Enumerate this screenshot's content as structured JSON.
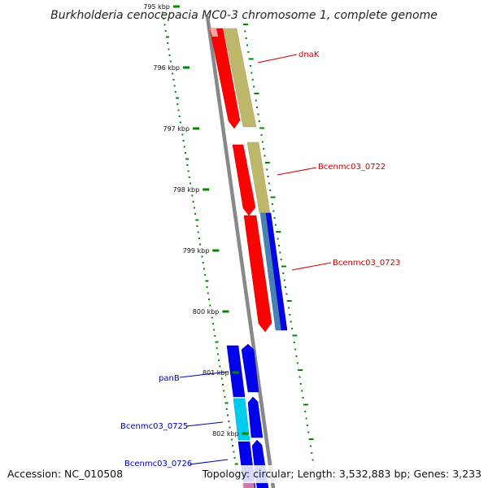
{
  "title": "Burkholderia cenocepacia MC0-3 chromosome 1, complete genome",
  "accession": "Accession: NC_010508",
  "topology": "Topology: circular; Length: 3,532,883 bp; Genes: 3,233",
  "colors": {
    "backbone": "#888888",
    "tick": "#008800",
    "red_gene": "#ff0000",
    "khaki_gene": "#bdb76b",
    "blue_gene": "#0000ee",
    "steelblue_gene": "#4682b4",
    "cyan_gene": "#00ccee",
    "label_red": "#cc0000",
    "label_blue": "#0000aa"
  },
  "axis": {
    "unit": "kbp",
    "major_ticks": [
      {
        "value": 795,
        "label": "795 kbp"
      },
      {
        "value": 796,
        "label": "796 kbp"
      },
      {
        "value": 797,
        "label": "797 kbp"
      },
      {
        "value": 798,
        "label": "798 kbp"
      },
      {
        "value": 799,
        "label": "799 kbp"
      },
      {
        "value": 800,
        "label": "800 kbp"
      },
      {
        "value": 801,
        "label": "801 kbp"
      },
      {
        "value": 802,
        "label": "802 kbp"
      }
    ]
  },
  "gene_labels": [
    {
      "id": "dnaK",
      "text": "dnaK",
      "color": "#cc0000"
    },
    {
      "id": "bcen0722",
      "text": "Bcenmc03_0722",
      "color": "#cc0000"
    },
    {
      "id": "bcen0723",
      "text": "Bcenmc03_0723",
      "color": "#cc0000"
    },
    {
      "id": "panB",
      "text": "panB",
      "color": "#0000aa"
    },
    {
      "id": "bcen0725",
      "text": "Bcenmc03_0725",
      "color": "#0000aa"
    },
    {
      "id": "bcen0726",
      "text": "Bcenmc03_0726",
      "color": "#0000aa"
    }
  ]
}
